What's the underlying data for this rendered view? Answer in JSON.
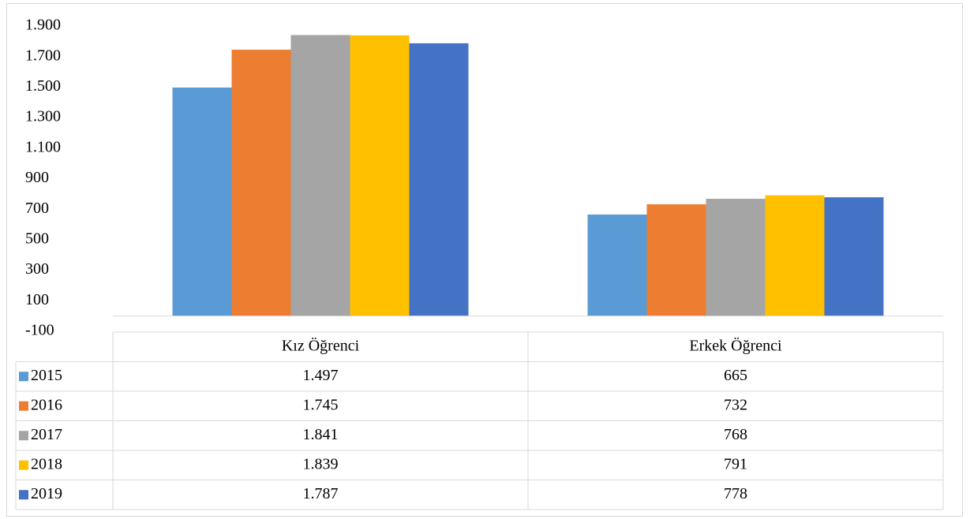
{
  "chart_data": {
    "type": "bar",
    "categories": [
      "Kız Öğrenci",
      "Erkek Öğrenci"
    ],
    "series": [
      {
        "name": "2015",
        "color": "#5b9bd5",
        "values": [
          1497,
          665
        ],
        "value_labels": [
          "1.497",
          "665"
        ]
      },
      {
        "name": "2016",
        "color": "#ed7d31",
        "values": [
          1745,
          732
        ],
        "value_labels": [
          "1.745",
          "732"
        ]
      },
      {
        "name": "2017",
        "color": "#a5a5a5",
        "values": [
          1841,
          768
        ],
        "value_labels": [
          "1.841",
          "768"
        ]
      },
      {
        "name": "2018",
        "color": "#ffc000",
        "values": [
          1839,
          791
        ],
        "value_labels": [
          "1.839",
          "791"
        ]
      },
      {
        "name": "2019",
        "color": "#4472c4",
        "values": [
          1787,
          778
        ],
        "value_labels": [
          "1.787",
          "778"
        ]
      }
    ],
    "ylim": [
      -100,
      1900
    ],
    "yticks": [
      -100,
      100,
      300,
      500,
      700,
      900,
      {
        "value": 1100,
        "label": "1.100"
      },
      {
        "value": 1300,
        "label": "1.300"
      },
      {
        "value": 1500,
        "label": "1.500"
      },
      {
        "value": 1700,
        "label": "1.700"
      },
      {
        "value": 1900,
        "label": "1.900"
      }
    ],
    "grid": false,
    "legend": "table"
  }
}
